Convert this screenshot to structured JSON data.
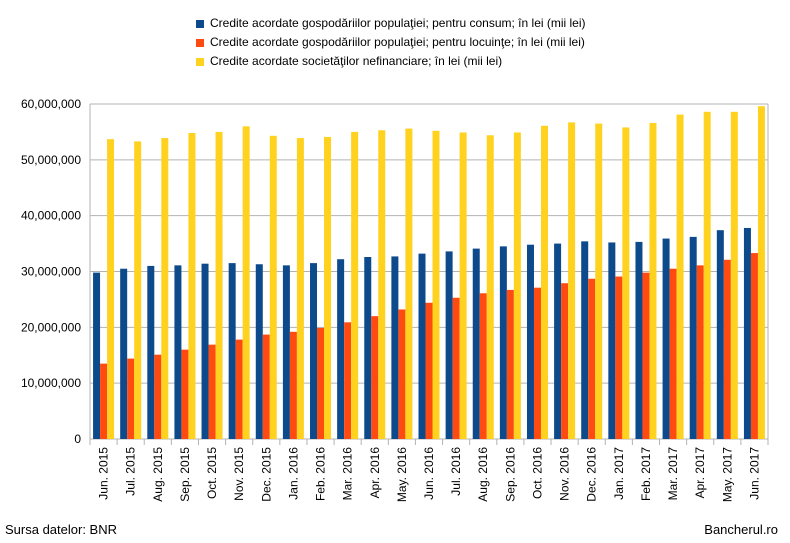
{
  "chart_data": {
    "type": "bar",
    "title": "",
    "xlabel": "",
    "ylabel": "",
    "ylim": [
      0,
      60000000
    ],
    "yticks": [
      "0",
      "10,000,000",
      "20,000,000",
      "30,000,000",
      "40,000,000",
      "50,000,000",
      "60,000,000"
    ],
    "ytick_values": [
      0,
      10000000,
      20000000,
      30000000,
      40000000,
      50000000,
      60000000
    ],
    "grid": "horizontal",
    "legend_position": "top",
    "categories": [
      "Jun. 2015",
      "Jul. 2015",
      "Aug. 2015",
      "Sep. 2015",
      "Oct. 2015",
      "Nov. 2015",
      "Dec. 2015",
      "Jan. 2016",
      "Feb. 2016",
      "Mar. 2016",
      "Apr. 2016",
      "May. 2016",
      "Jun. 2016",
      "Jul. 2016",
      "Aug. 2016",
      "Sep. 2016",
      "Oct. 2016",
      "Nov. 2016",
      "Dec. 2016",
      "Jan. 2017",
      "Feb. 2017",
      "Mar. 2017",
      "Apr. 2017",
      "May. 2017",
      "Jun. 2017"
    ],
    "series": [
      {
        "name": "Credite acordate gospodăriilor populaţiei; pentru consum; în lei (mii lei)",
        "color": "#0d4a8c",
        "values": [
          29800000,
          30500000,
          31000000,
          31100000,
          31400000,
          31500000,
          31300000,
          31100000,
          31500000,
          32200000,
          32600000,
          32700000,
          33200000,
          33600000,
          34100000,
          34500000,
          34800000,
          35000000,
          35400000,
          35200000,
          35300000,
          35900000,
          36200000,
          37400000,
          37800000
        ]
      },
      {
        "name": "Credite acordate gospodăriilor populaţiei; pentru locuinţe; în lei (mii lei)",
        "color": "#ff4a12",
        "values": [
          13500000,
          14400000,
          15100000,
          16000000,
          16900000,
          17800000,
          18700000,
          19200000,
          19900000,
          20900000,
          22000000,
          23200000,
          24400000,
          25300000,
          26100000,
          26700000,
          27100000,
          27900000,
          28700000,
          29100000,
          29800000,
          30500000,
          31100000,
          32100000,
          33300000
        ]
      },
      {
        "name": "Credite acordate societăţilor nefinanciare; în lei (mii lei)",
        "color": "#ffd21f",
        "values": [
          53700000,
          53300000,
          53900000,
          54800000,
          55000000,
          56000000,
          54300000,
          53900000,
          54100000,
          55000000,
          55300000,
          55600000,
          55200000,
          54900000,
          54400000,
          54900000,
          56100000,
          56700000,
          56500000,
          55800000,
          56600000,
          58100000,
          58600000,
          58600000,
          59600000
        ]
      }
    ]
  },
  "footer": {
    "source": "Sursa datelor: BNR",
    "brand": "Bancherul.ro"
  }
}
